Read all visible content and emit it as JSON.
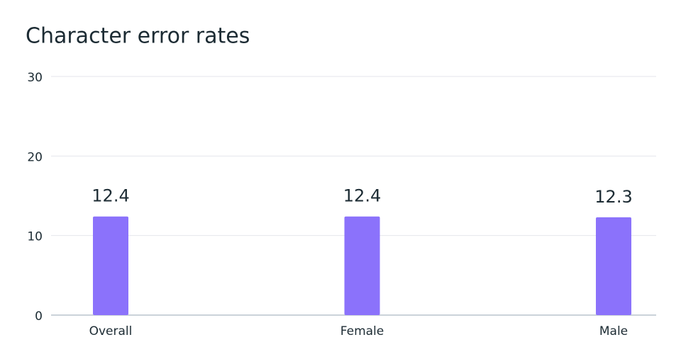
{
  "chart_data": {
    "type": "bar",
    "title": "Character error rates",
    "categories": [
      "Overall",
      "Female",
      "Male"
    ],
    "values": [
      12.4,
      12.4,
      12.3
    ],
    "color": "#8b72fb",
    "ylim": [
      0,
      30
    ],
    "yticks": [
      0,
      10,
      20,
      30
    ],
    "grid": true
  }
}
